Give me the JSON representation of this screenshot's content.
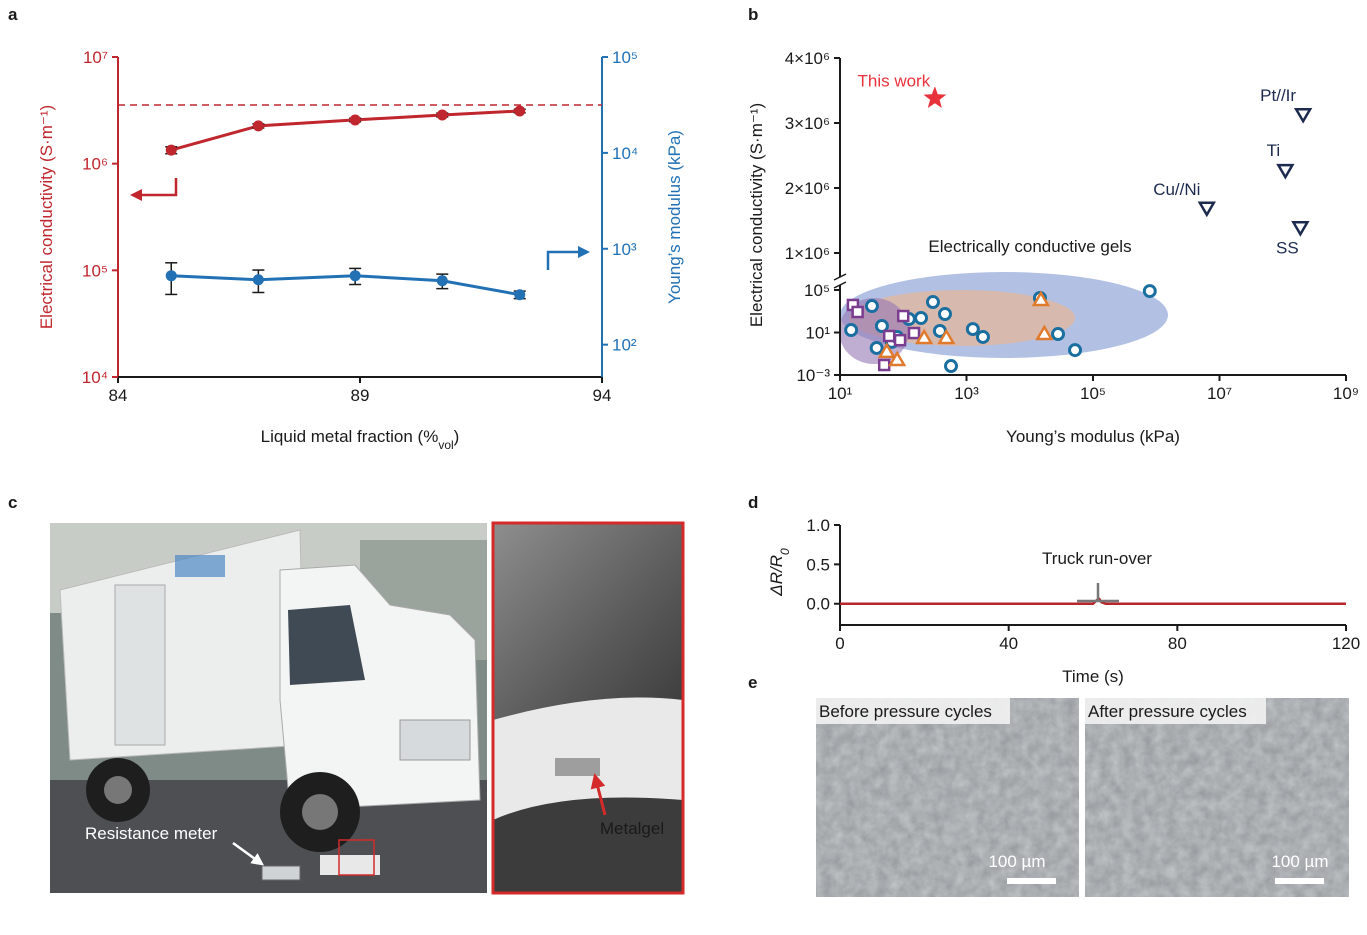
{
  "panel_labels": [
    "a",
    "b",
    "c",
    "d",
    "e"
  ],
  "chart_data": [
    {
      "type": "line",
      "xlabel": [
        "Liquid metal fraction (%",
        "vol",
        ")"
      ],
      "ylabel": "Electrical conductivity (S·m⁻¹)",
      "y2label": "Young’s modulus (kPa)",
      "x": [
        85.1,
        86.9,
        88.9,
        90.7,
        92.3
      ],
      "xlim": [
        84,
        94
      ],
      "xticks": [
        84,
        89,
        94
      ],
      "ylim": [
        10000,
        10000000
      ],
      "ylog": true,
      "yticks": [
        {
          "value": 10000,
          "label": "10⁴"
        },
        {
          "value": 100000,
          "label": "10⁵"
        },
        {
          "value": 1000000,
          "label": "10⁶"
        },
        {
          "value": 10000000,
          "label": "10⁷"
        }
      ],
      "y2lim": [
        46,
        100000
      ],
      "y2log": true,
      "y2ticks": [
        {
          "value": 100,
          "label": "10²"
        },
        {
          "value": 1000,
          "label": "10³"
        },
        {
          "value": 10000,
          "label": "10⁴"
        },
        {
          "value": 100000,
          "label": "10⁵"
        }
      ],
      "reference_line": 3550000,
      "series": [
        {
          "color": "#c0262d",
          "values": [
            1340000,
            2260000,
            2570000,
            2860000,
            3120000
          ],
          "errors": [
            100000,
            100000,
            100000,
            120000,
            120000
          ]
        },
        {
          "color": "#2271b5",
          "axis": "y2",
          "values": [
            524,
            475,
            524,
            464,
            332
          ],
          "errors": [
            190,
            125,
            100,
            80,
            30
          ]
        }
      ]
    },
    {
      "type": "scatter",
      "xlabel": "Young’s modulus (kPa)",
      "ylabel": "Electrical conductivity (S·m⁻¹)",
      "annotation": "Electrically conductive gels",
      "xlim": [
        10,
        1000000000
      ],
      "xlog": true,
      "xticks": [
        {
          "value": 10,
          "label": "10¹"
        },
        {
          "value": 1000,
          "label": "10³"
        },
        {
          "value": 100000,
          "label": "10⁵"
        },
        {
          "value": 10000000,
          "label": "10⁷"
        },
        {
          "value": 1000000000,
          "label": "10⁹"
        }
      ],
      "ylim": [
        0.001,
        4000000
      ],
      "y_break": [
        100000,
        1000000
      ],
      "yticks": [
        {
          "value": 0.001,
          "label": "10⁻³"
        },
        {
          "value": 10,
          "label": "10¹"
        },
        {
          "value": 100000,
          "label": "10⁵"
        },
        {
          "value": 1000000,
          "label": "1×10⁶"
        },
        {
          "value": 2000000,
          "label": "2×10⁶"
        },
        {
          "value": 3000000,
          "label": "3×10⁶"
        },
        {
          "value": 4000000,
          "label": "4×10⁶"
        }
      ],
      "series": [
        {
          "name": "This work",
          "marker": "star",
          "color": "#e8323c",
          "x": [
            316
          ],
          "values": [
            3380000
          ]
        },
        {
          "marker": "triangle-down",
          "color": "#1b2a4e",
          "labels": [
            "Pt//Ir",
            "Ti",
            "Cu//Ni",
            "SS"
          ],
          "x": [
            210000000,
            110000000,
            6300000,
            190000000
          ],
          "values": [
            3120000,
            2260000,
            1680000,
            1380000
          ]
        },
        {
          "marker": "circle",
          "color": "#1a6fa0",
          "x": [
            15,
            32,
            46,
            38,
            66,
            80,
            123,
            191,
            295,
            380,
            457,
            569,
            1260,
            1820,
            14500,
            28000,
            52000,
            790000
          ],
          "values": [
            17,
            3100,
            41,
            0.35,
            1.3,
            3.8,
            186,
            232,
            7400,
            14,
            550,
            0.007,
            21,
            3.8,
            17800,
            7.2,
            0.22,
            79000
          ]
        },
        {
          "marker": "square",
          "color": "#7a3d8f",
          "x": [
            16,
            19,
            100,
            50,
            60,
            89,
            148
          ],
          "values": [
            3900,
            850,
            355,
            0.0087,
            4.7,
            1.9,
            8.9
          ]
        },
        {
          "marker": "triangle",
          "color": "#e07b2e",
          "x": [
            55,
            80,
            214,
            480,
            15000,
            17000
          ],
          "values": [
            0.15,
            0.026,
            3.0,
            3.0,
            11500,
            7.2
          ]
        }
      ]
    },
    {
      "type": "line",
      "xlabel": "Time (s)",
      "ylabel": [
        "ΔR/R",
        "0"
      ],
      "annotation": "Truck run-over",
      "xlim": [
        0,
        120
      ],
      "xticks": [
        0,
        40,
        80,
        120
      ],
      "ylim": [
        -0.27,
        1.0
      ],
      "yticks": [
        {
          "value": 0,
          "label": "0.0"
        },
        {
          "value": 0.5,
          "label": "0.5"
        },
        {
          "value": 1,
          "label": "1.0"
        }
      ],
      "series": [
        {
          "color": "#b5272d",
          "x": [
            0,
            20,
            40,
            60,
            61,
            61.5,
            62,
            63,
            80,
            100,
            120
          ],
          "values": [
            0,
            0,
            0,
            0,
            0.05,
            0.06,
            0.02,
            0,
            0,
            0,
            0
          ]
        }
      ]
    }
  ],
  "photo": {
    "labels": [
      "Resistance meter",
      "Metalgel"
    ]
  },
  "micrographs": [
    {
      "title": "Before pressure cycles",
      "scale_bar": "100 µm"
    },
    {
      "title": "After pressure cycles",
      "scale_bar": "100 µm"
    }
  ]
}
